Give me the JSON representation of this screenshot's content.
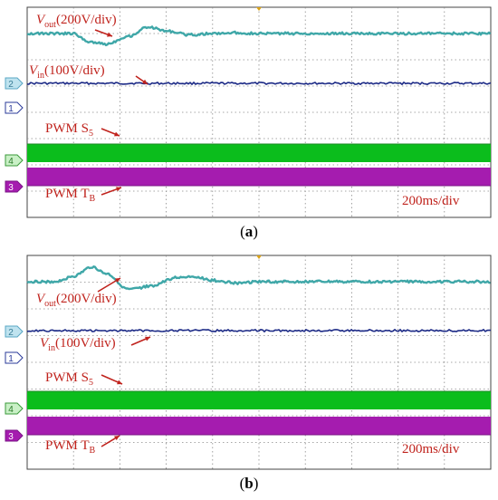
{
  "panels": [
    {
      "caption_open": "(",
      "caption_letter": "a",
      "caption_close": ")",
      "time_scale": "200ms/div",
      "labels": {
        "vout": {
          "v": "V",
          "sub": "out",
          "rest": "(200V/div)"
        },
        "vin": {
          "v": "V",
          "sub": "in",
          "rest": "(100V/div)"
        },
        "s5": {
          "base": "PWM S",
          "sub": "5"
        },
        "tb": {
          "base": "PWM T",
          "sub": "B"
        }
      },
      "channel_markers": [
        "2",
        "1",
        "4",
        "3"
      ]
    },
    {
      "caption_open": "(",
      "caption_letter": "b",
      "caption_close": ")",
      "time_scale": "200ms/div",
      "labels": {
        "vout": {
          "v": "V",
          "sub": "out",
          "rest": "(200V/div)"
        },
        "vin": {
          "v": "V",
          "sub": "in",
          "rest": "(100V/div)"
        },
        "s5": {
          "base": "PWM S",
          "sub": "5"
        },
        "tb": {
          "base": "PWM T",
          "sub": "B"
        }
      },
      "channel_markers": [
        "2",
        "1",
        "4",
        "3"
      ]
    }
  ],
  "chart_data": [
    {
      "type": "line",
      "panel": "a",
      "x_divisions": 10,
      "y_divisions": 8,
      "time_per_div": "200ms/div",
      "series": [
        {
          "name": "Vout",
          "scale": "200V/div",
          "x_div": [
            0,
            0.6,
            1.0,
            1.3,
            1.7,
            2.2,
            2.6,
            3.0,
            3.5,
            4.0,
            4.5,
            5.0,
            6.0,
            7.0,
            8.0,
            10.0
          ],
          "y_div": [
            0,
            0,
            0,
            -0.3,
            -0.4,
            -0.1,
            0.25,
            0.1,
            -0.05,
            0,
            0.03,
            0,
            0,
            0,
            0,
            0
          ]
        },
        {
          "name": "Vin",
          "scale": "100V/div",
          "x_div": [
            0,
            10
          ],
          "y_div": [
            0,
            0
          ]
        },
        {
          "name": "PWM S5",
          "kind": "switching band",
          "color": "#0bbd1c"
        },
        {
          "name": "PWM TB",
          "kind": "switching band",
          "color": "#a51caf"
        }
      ],
      "colors": {
        "vout": "#3fa7a8",
        "vin": "#1c2a86",
        "s5": "#0bbd1c",
        "tb": "#a51caf"
      }
    },
    {
      "type": "line",
      "panel": "b",
      "x_divisions": 10,
      "y_divisions": 8,
      "time_per_div": "200ms/div",
      "series": [
        {
          "name": "Vout",
          "scale": "200V/div",
          "x_div": [
            0,
            0.6,
            1.0,
            1.4,
            1.7,
            2.2,
            2.7,
            3.2,
            3.6,
            4.0,
            4.5,
            5.0,
            6.0,
            7.0,
            8.0,
            10.0
          ],
          "y_div": [
            0,
            0,
            0.2,
            0.55,
            0.3,
            -0.3,
            -0.15,
            0.15,
            0.2,
            0.05,
            -0.05,
            0,
            0,
            0,
            0,
            0
          ]
        },
        {
          "name": "Vin",
          "scale": "100V/div",
          "x_div": [
            0,
            10
          ],
          "y_div": [
            0,
            0
          ]
        },
        {
          "name": "PWM S5",
          "kind": "switching band",
          "color": "#0bbd1c"
        },
        {
          "name": "PWM TB",
          "kind": "switching band",
          "color": "#a51caf"
        }
      ],
      "colors": {
        "vout": "#3fa7a8",
        "vin": "#1c2a86",
        "s5": "#0bbd1c",
        "tb": "#a51caf"
      }
    }
  ]
}
